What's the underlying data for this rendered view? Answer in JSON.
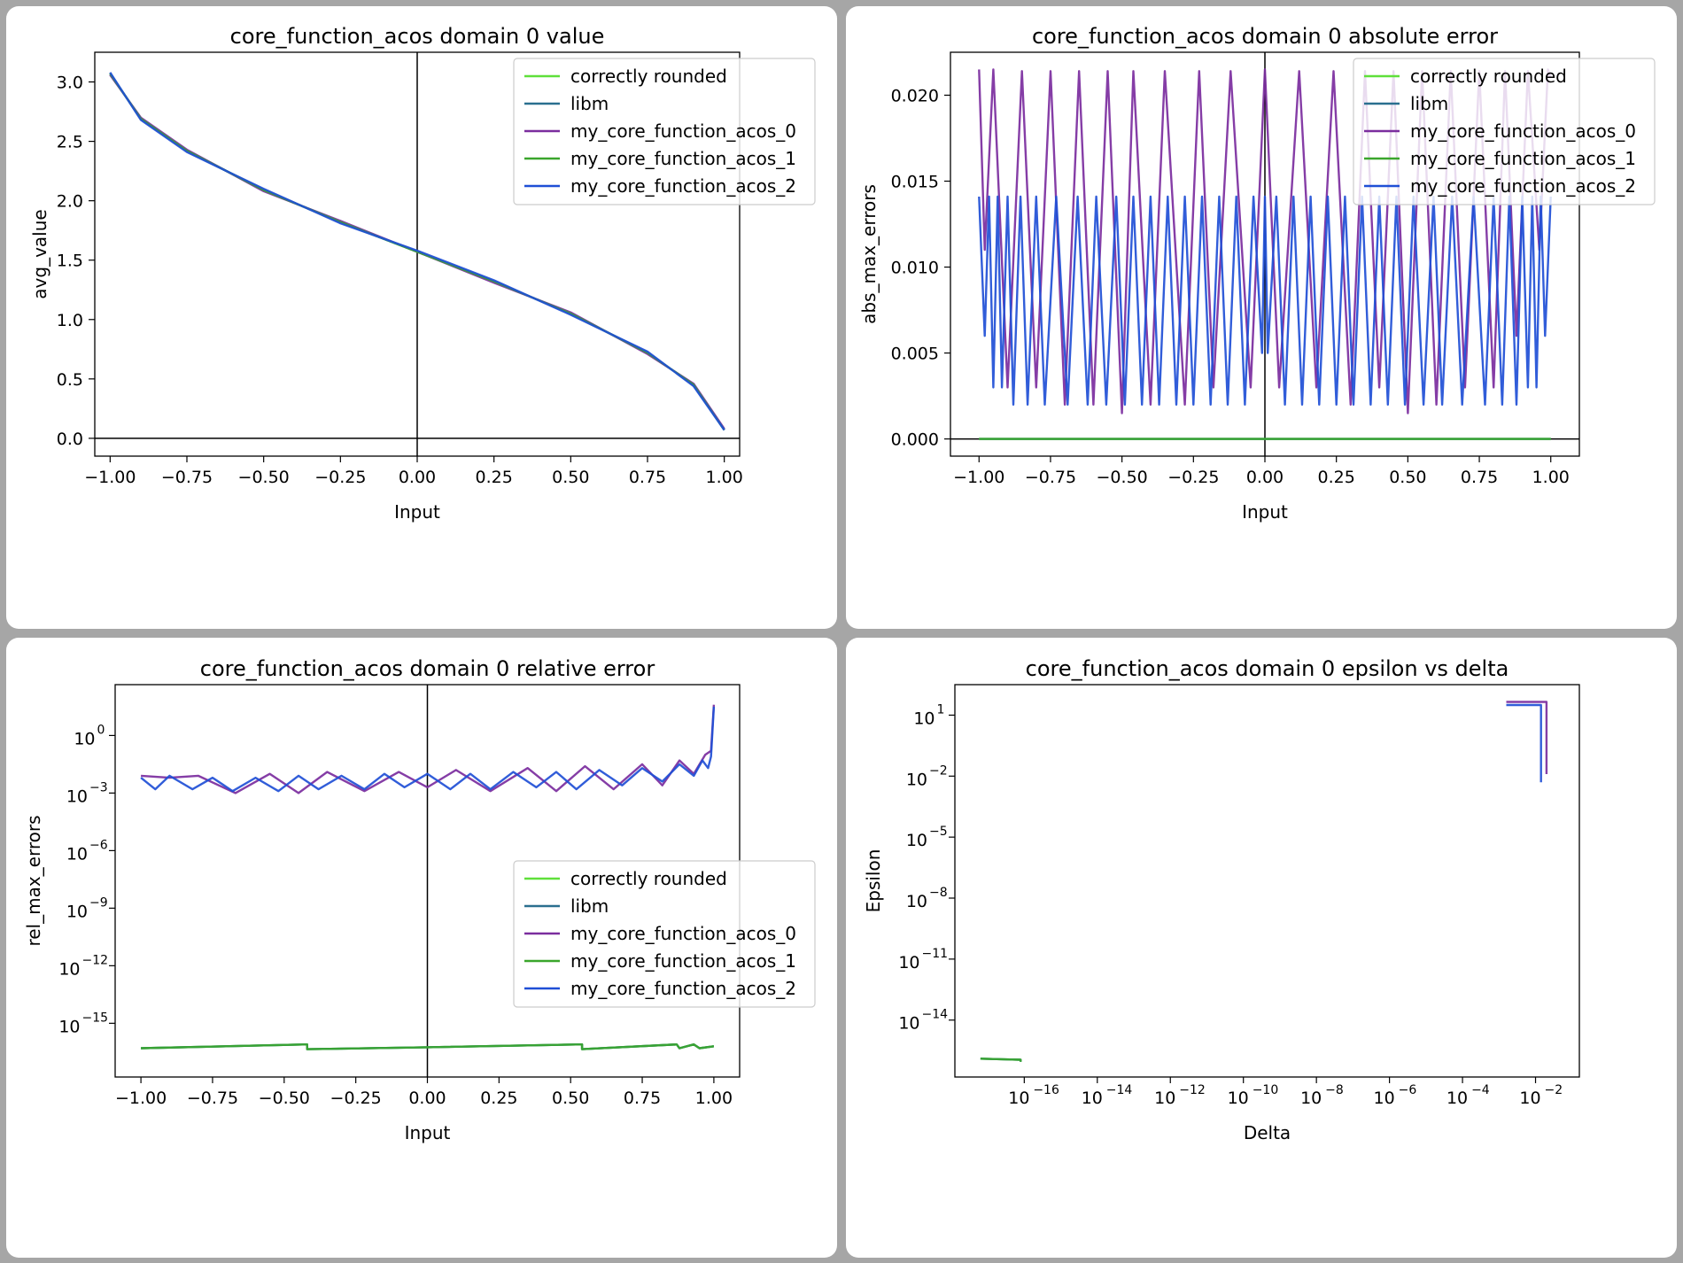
{
  "chart_data": [
    {
      "id": "value",
      "type": "line",
      "title": "core_function_acos domain 0 value",
      "xlabel": "Input",
      "ylabel": "avg_value",
      "xlim": [
        -1.05,
        1.05
      ],
      "ylim": [
        -0.15,
        3.25
      ],
      "yscale": "linear",
      "xticks": [
        -1.0,
        -0.75,
        -0.5,
        -0.25,
        0.0,
        0.25,
        0.5,
        0.75,
        1.0
      ],
      "xtick_labels": [
        "−1.00",
        "−0.75",
        "−0.50",
        "−0.25",
        "0.00",
        "0.25",
        "0.50",
        "0.75",
        "1.00"
      ],
      "yticks": [
        0.0,
        0.5,
        1.0,
        1.5,
        2.0,
        2.5,
        3.0
      ],
      "ytick_labels": [
        "0.0",
        "0.5",
        "1.0",
        "1.5",
        "2.0",
        "2.5",
        "3.0"
      ],
      "axhline": 0,
      "axvline": 0,
      "legend": "top-right",
      "series": [
        {
          "name": "correctly rounded",
          "color": "#5fe03a",
          "x": [
            -1.0,
            -0.9,
            -0.75,
            -0.5,
            -0.25,
            0.0,
            0.25,
            0.5,
            0.75,
            0.9,
            1.0
          ],
          "y": [
            3.07,
            2.69,
            2.42,
            2.09,
            1.82,
            1.571,
            1.32,
            1.05,
            0.72,
            0.45,
            0.07
          ]
        },
        {
          "name": "libm",
          "color": "#2a6f8f",
          "x": [
            -1.0,
            -0.9,
            -0.75,
            -0.5,
            -0.25,
            0.0,
            0.25,
            0.5,
            0.75,
            0.9,
            1.0
          ],
          "y": [
            3.07,
            2.69,
            2.42,
            2.09,
            1.82,
            1.571,
            1.32,
            1.05,
            0.72,
            0.45,
            0.07
          ]
        },
        {
          "name": "my_core_function_acos_0",
          "color": "#7b2d9e",
          "x": [
            -1.0,
            -0.9,
            -0.75,
            -0.5,
            -0.25,
            0.0,
            0.25,
            0.5,
            0.75,
            0.9,
            1.0
          ],
          "y": [
            3.06,
            2.7,
            2.43,
            2.08,
            1.83,
            1.57,
            1.31,
            1.06,
            0.71,
            0.46,
            0.08
          ]
        },
        {
          "name": "my_core_function_acos_1",
          "color": "#3aa62c",
          "x": [
            -1.0,
            -0.9,
            -0.75,
            -0.5,
            -0.25,
            0.0,
            0.25,
            0.5,
            0.75,
            0.9,
            1.0
          ],
          "y": [
            3.07,
            2.69,
            2.42,
            2.09,
            1.82,
            1.571,
            1.32,
            1.05,
            0.72,
            0.45,
            0.07
          ]
        },
        {
          "name": "my_core_function_acos_2",
          "color": "#1f4fd6",
          "x": [
            -1.0,
            -0.9,
            -0.75,
            -0.5,
            -0.25,
            0.0,
            0.25,
            0.5,
            0.75,
            0.9,
            1.0
          ],
          "y": [
            3.08,
            2.68,
            2.41,
            2.1,
            1.81,
            1.58,
            1.33,
            1.04,
            0.73,
            0.44,
            0.07
          ]
        }
      ]
    },
    {
      "id": "abs",
      "type": "line",
      "title": "core_function_acos domain 0 absolute error",
      "xlabel": "Input",
      "ylabel": "abs_max_errors",
      "xlim": [
        -1.1,
        1.1
      ],
      "ylim": [
        -0.001,
        0.0225
      ],
      "yscale": "linear",
      "xticks": [
        -1.0,
        -0.75,
        -0.5,
        -0.25,
        0.0,
        0.25,
        0.5,
        0.75,
        1.0
      ],
      "xtick_labels": [
        "−1.00",
        "−0.75",
        "−0.50",
        "−0.25",
        "0.00",
        "0.25",
        "0.50",
        "0.75",
        "1.00"
      ],
      "yticks": [
        0.0,
        0.005,
        0.01,
        0.015,
        0.02
      ],
      "ytick_labels": [
        "0.000",
        "0.005",
        "0.010",
        "0.015",
        "0.020"
      ],
      "axhline": 0,
      "axvline": 0,
      "legend": "top-right",
      "series": [
        {
          "name": "correctly rounded",
          "color": "#5fe03a",
          "x": [
            -1.0,
            1.0
          ],
          "y": [
            0.0,
            0.0
          ]
        },
        {
          "name": "libm",
          "color": "#2a6f8f",
          "x": [
            -1.0,
            1.0
          ],
          "y": [
            0.0,
            0.0
          ]
        },
        {
          "name": "my_core_function_acos_0",
          "color": "#7b2d9e",
          "x": [
            -1.0,
            -0.98,
            -0.95,
            -0.9,
            -0.85,
            -0.8,
            -0.75,
            -0.7,
            -0.65,
            -0.6,
            -0.55,
            -0.5,
            -0.46,
            -0.4,
            -0.35,
            -0.28,
            -0.23,
            -0.18,
            -0.12,
            -0.05,
            0.0,
            0.05,
            0.12,
            0.18,
            0.24,
            0.3,
            0.35,
            0.4,
            0.45,
            0.5,
            0.55,
            0.6,
            0.65,
            0.7,
            0.75,
            0.8,
            0.84,
            0.88,
            0.92,
            0.96,
            0.99,
            1.0
          ],
          "y": [
            0.0215,
            0.011,
            0.0215,
            0.003,
            0.0214,
            0.003,
            0.0214,
            0.002,
            0.0214,
            0.002,
            0.0214,
            0.0015,
            0.0214,
            0.002,
            0.0214,
            0.002,
            0.0214,
            0.003,
            0.0214,
            0.003,
            0.0215,
            0.003,
            0.0214,
            0.003,
            0.0214,
            0.002,
            0.0214,
            0.003,
            0.0214,
            0.0015,
            0.0214,
            0.002,
            0.0214,
            0.003,
            0.0214,
            0.003,
            0.0214,
            0.006,
            0.0214,
            0.011,
            0.0215,
            0.021
          ]
        },
        {
          "name": "my_core_function_acos_1",
          "color": "#3aa62c",
          "x": [
            -1.0,
            1.0
          ],
          "y": [
            0.0,
            0.0
          ]
        },
        {
          "name": "my_core_function_acos_2",
          "color": "#1f4fd6",
          "x": [
            -1.0,
            -0.98,
            -0.965,
            -0.95,
            -0.935,
            -0.92,
            -0.9,
            -0.88,
            -0.855,
            -0.83,
            -0.8,
            -0.77,
            -0.73,
            -0.69,
            -0.655,
            -0.62,
            -0.59,
            -0.555,
            -0.52,
            -0.49,
            -0.46,
            -0.43,
            -0.4,
            -0.37,
            -0.34,
            -0.31,
            -0.28,
            -0.25,
            -0.22,
            -0.19,
            -0.16,
            -0.13,
            -0.1,
            -0.07,
            -0.04,
            -0.01,
            0.0,
            0.01,
            0.04,
            0.07,
            0.1,
            0.13,
            0.16,
            0.19,
            0.22,
            0.25,
            0.28,
            0.31,
            0.34,
            0.37,
            0.4,
            0.43,
            0.46,
            0.49,
            0.52,
            0.555,
            0.59,
            0.62,
            0.655,
            0.69,
            0.73,
            0.77,
            0.8,
            0.83,
            0.855,
            0.88,
            0.9,
            0.92,
            0.935,
            0.95,
            0.965,
            0.98,
            1.0
          ],
          "y": [
            0.0141,
            0.006,
            0.0141,
            0.003,
            0.0141,
            0.003,
            0.0141,
            0.002,
            0.0141,
            0.002,
            0.0141,
            0.002,
            0.0141,
            0.002,
            0.0141,
            0.002,
            0.0141,
            0.002,
            0.0141,
            0.002,
            0.0141,
            0.002,
            0.0141,
            0.002,
            0.0141,
            0.002,
            0.0141,
            0.002,
            0.0141,
            0.002,
            0.0141,
            0.002,
            0.0141,
            0.002,
            0.0141,
            0.005,
            0.0141,
            0.005,
            0.0141,
            0.002,
            0.0141,
            0.002,
            0.0141,
            0.002,
            0.0141,
            0.002,
            0.0141,
            0.002,
            0.0141,
            0.002,
            0.0141,
            0.002,
            0.0141,
            0.002,
            0.0141,
            0.002,
            0.0141,
            0.002,
            0.0141,
            0.002,
            0.0141,
            0.002,
            0.0141,
            0.002,
            0.0141,
            0.002,
            0.0141,
            0.003,
            0.0141,
            0.003,
            0.0141,
            0.006,
            0.0141
          ]
        }
      ]
    },
    {
      "id": "rel",
      "type": "line",
      "title": "core_function_acos domain 0 relative error",
      "xlabel": "Input",
      "ylabel": "rel_max_errors",
      "xlim": [
        -1.09,
        1.09
      ],
      "ylim": [
        -17.8,
        2.65
      ],
      "yscale": "log",
      "xticks": [
        -1.0,
        -0.75,
        -0.5,
        -0.25,
        0.0,
        0.25,
        0.5,
        0.75,
        1.0
      ],
      "xtick_labels": [
        "−1.00",
        "−0.75",
        "−0.50",
        "−0.25",
        "0.00",
        "0.25",
        "0.50",
        "0.75",
        "1.00"
      ],
      "yticks": [
        0,
        -3,
        -6,
        -9,
        -12,
        -15
      ],
      "ytick_labels": [
        "0",
        "−3",
        "−6",
        "−9",
        "−12",
        "−15"
      ],
      "axvline": 0,
      "legend": "center-right",
      "series": [
        {
          "name": "correctly rounded",
          "color": "#5fe03a",
          "x": [
            -1.0,
            -0.42,
            -0.42,
            0.0,
            0.54,
            0.54,
            0.87,
            0.88,
            0.93,
            0.95,
            1.0
          ],
          "y": [
            -16.3,
            -16.1,
            -16.35,
            -16.25,
            -16.1,
            -16.35,
            -16.1,
            -16.3,
            -16.1,
            -16.3,
            -16.2
          ]
        },
        {
          "name": "libm",
          "color": "#2a6f8f",
          "x": [
            -1.0,
            -0.42,
            -0.42,
            0.0,
            0.54,
            0.54,
            0.87,
            0.88,
            0.93,
            0.95,
            1.0
          ],
          "y": [
            -16.3,
            -16.1,
            -16.35,
            -16.25,
            -16.1,
            -16.35,
            -16.1,
            -16.3,
            -16.1,
            -16.3,
            -16.2
          ]
        },
        {
          "name": "my_core_function_acos_0",
          "color": "#7b2d9e",
          "x": [
            -1.0,
            -0.9,
            -0.8,
            -0.67,
            -0.55,
            -0.45,
            -0.35,
            -0.22,
            -0.1,
            0.0,
            0.1,
            0.22,
            0.35,
            0.45,
            0.55,
            0.65,
            0.75,
            0.82,
            0.88,
            0.93,
            0.97,
            0.99,
            1.0
          ],
          "y": [
            -2.1,
            -2.2,
            -2.1,
            -3.0,
            -2.0,
            -3.0,
            -1.9,
            -2.9,
            -1.9,
            -2.7,
            -1.8,
            -2.9,
            -1.7,
            -2.9,
            -1.6,
            -2.8,
            -1.5,
            -2.6,
            -1.3,
            -2.0,
            -1.0,
            -0.8,
            1.6
          ]
        },
        {
          "name": "my_core_function_acos_1",
          "color": "#3aa62c",
          "x": [
            -1.0,
            -0.42,
            -0.42,
            0.0,
            0.54,
            0.54,
            0.87,
            0.88,
            0.93,
            0.95,
            1.0
          ],
          "y": [
            -16.3,
            -16.1,
            -16.35,
            -16.25,
            -16.1,
            -16.35,
            -16.1,
            -16.3,
            -16.1,
            -16.3,
            -16.2
          ]
        },
        {
          "name": "my_core_function_acos_2",
          "color": "#1f4fd6",
          "x": [
            -1.0,
            -0.95,
            -0.9,
            -0.82,
            -0.75,
            -0.68,
            -0.6,
            -0.52,
            -0.45,
            -0.38,
            -0.3,
            -0.22,
            -0.15,
            -0.08,
            0.0,
            0.08,
            0.15,
            0.22,
            0.3,
            0.38,
            0.45,
            0.52,
            0.6,
            0.68,
            0.75,
            0.82,
            0.88,
            0.93,
            0.96,
            0.98,
            0.99,
            1.0
          ],
          "y": [
            -2.2,
            -2.8,
            -2.1,
            -2.8,
            -2.2,
            -2.9,
            -2.2,
            -2.9,
            -2.1,
            -2.8,
            -2.1,
            -2.8,
            -2.0,
            -2.7,
            -2.0,
            -2.8,
            -2.0,
            -2.8,
            -1.9,
            -2.7,
            -1.9,
            -2.8,
            -1.8,
            -2.6,
            -1.7,
            -2.4,
            -1.5,
            -2.1,
            -1.3,
            -1.7,
            -1.1,
            1.5
          ]
        }
      ]
    },
    {
      "id": "eps",
      "type": "line",
      "title": "core_function_acos domain 0 epsilon vs delta",
      "xlabel": "Delta",
      "ylabel": "Epsilon",
      "xlim": [
        -17.9,
        -0.8
      ],
      "ylim": [
        -16.8,
        2.5
      ],
      "xscale": "log",
      "yscale": "log",
      "xticks": [
        -16,
        -14,
        -12,
        -10,
        -8,
        -6,
        -4,
        -2
      ],
      "xtick_labels": [
        "−16",
        "−14",
        "−12",
        "−10",
        "−8",
        "−6",
        "−4",
        "−2"
      ],
      "yticks": [
        1,
        -2,
        -5,
        -8,
        -11,
        -14
      ],
      "ytick_labels": [
        "1",
        "−2",
        "−5",
        "−8",
        "−11",
        "−14"
      ],
      "series": [
        {
          "name": "correctly rounded",
          "color": "#5fe03a",
          "x": [
            -17.2,
            -16.1,
            -16.1
          ],
          "y": [
            -15.9,
            -15.95,
            -16.05
          ]
        },
        {
          "name": "libm",
          "color": "#2a6f8f",
          "x": [
            -17.2,
            -16.1,
            -16.1
          ],
          "y": [
            -15.9,
            -15.95,
            -16.05
          ]
        },
        {
          "name": "my_core_function_acos_0",
          "color": "#7b2d9e",
          "x": [
            -2.8,
            -1.7,
            -1.7
          ],
          "y": [
            1.65,
            1.65,
            -1.9
          ]
        },
        {
          "name": "my_core_function_acos_1",
          "color": "#3aa62c",
          "x": [
            -17.2,
            -16.1,
            -16.1
          ],
          "y": [
            -15.9,
            -15.95,
            -16.05
          ]
        },
        {
          "name": "my_core_function_acos_2",
          "color": "#1f4fd6",
          "x": [
            -2.8,
            -1.85,
            -1.85
          ],
          "y": [
            1.5,
            1.5,
            -2.3
          ]
        }
      ]
    }
  ]
}
